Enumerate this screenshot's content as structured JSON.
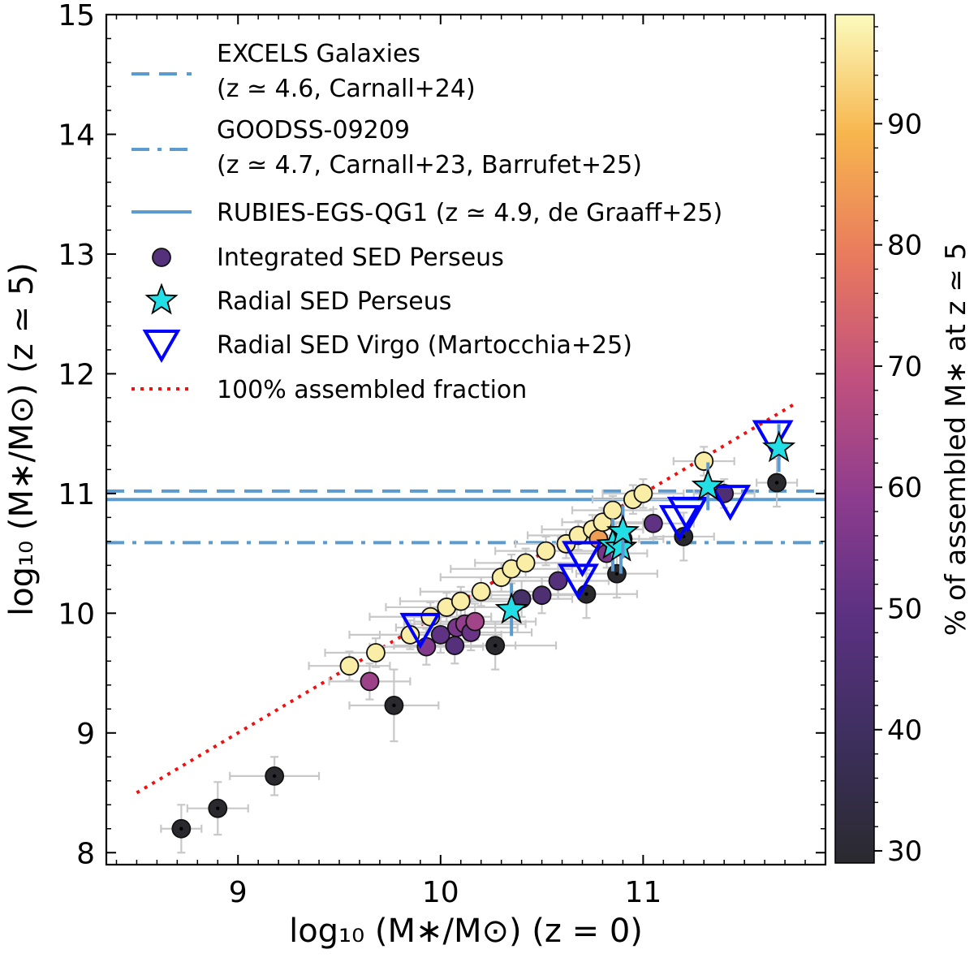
{
  "chart_data": {
    "type": "scatter",
    "xlabel": "log₁₀ (M∗/M⊙) (z = 0)",
    "ylabel": "log₁₀ (M∗/M⊙) (z ≃ 5)",
    "xlim": [
      8.35,
      11.9
    ],
    "ylim": [
      7.9,
      15.0
    ],
    "xticks": [
      9,
      10,
      11
    ],
    "yticks": [
      8,
      9,
      10,
      11,
      12,
      13,
      14,
      15
    ],
    "colorbar": {
      "label": "% of assembled M∗ at z ≃ 5",
      "range": [
        29,
        99
      ],
      "ticks": [
        30,
        40,
        50,
        60,
        70,
        80,
        90
      ]
    },
    "reference_lines": [
      {
        "name": "EXCELS Galaxies",
        "label_line1": "EXCELS Galaxies",
        "label_line2": "(z ≃ 4.6, Carnall+24)",
        "y": 11.02,
        "style": "dashed"
      },
      {
        "name": "GOODSS-09209",
        "label_line1": "GOODSS-09209",
        "label_line2": "(z ≃ 4.7, Carnall+23, Barrufet+25)",
        "y": 10.59,
        "style": "dashdot"
      },
      {
        "name": "RUBIES-EGS-QG1",
        "label_line1": "RUBIES-EGS-QG1 (z ≃ 4.9, de Graaff+25)",
        "label_line2": "",
        "y": 10.95,
        "style": "solid"
      }
    ],
    "one_to_one_line": {
      "name": "100% assembled fraction",
      "x": [
        8.5,
        11.75
      ],
      "y": [
        8.5,
        11.75
      ]
    },
    "series": [
      {
        "name": "Integrated SED Perseus",
        "marker": "circle",
        "points": [
          {
            "x": 8.72,
            "y": 8.2,
            "c": 29,
            "xerr": 0.1,
            "yerr": 0.2
          },
          {
            "x": 8.9,
            "y": 8.37,
            "c": 29,
            "xerr": 0.15,
            "yerr": 0.22
          },
          {
            "x": 9.18,
            "y": 8.64,
            "c": 29,
            "xerr": 0.22,
            "yerr": 0.16
          },
          {
            "x": 9.55,
            "y": 9.56,
            "c": 97,
            "xerr": 0.2,
            "yerr": 0.12
          },
          {
            "x": 9.65,
            "y": 9.43,
            "c": 62,
            "xerr": 0.2,
            "yerr": 0.15
          },
          {
            "x": 9.68,
            "y": 9.67,
            "c": 97,
            "xerr": 0.25,
            "yerr": 0.12
          },
          {
            "x": 9.77,
            "y": 9.23,
            "c": 29,
            "xerr": 0.22,
            "yerr": 0.3
          },
          {
            "x": 9.85,
            "y": 9.82,
            "c": 97,
            "xerr": 0.3,
            "yerr": 0.12
          },
          {
            "x": 9.93,
            "y": 9.72,
            "c": 57,
            "xerr": 0.28,
            "yerr": 0.15
          },
          {
            "x": 9.95,
            "y": 9.97,
            "c": 97,
            "xerr": 0.3,
            "yerr": 0.12
          },
          {
            "x": 10.0,
            "y": 9.82,
            "c": 50,
            "xerr": 0.3,
            "yerr": 0.15
          },
          {
            "x": 10.03,
            "y": 10.05,
            "c": 97,
            "xerr": 0.3,
            "yerr": 0.12
          },
          {
            "x": 10.07,
            "y": 9.73,
            "c": 47,
            "xerr": 0.3,
            "yerr": 0.15
          },
          {
            "x": 10.08,
            "y": 9.88,
            "c": 55,
            "xerr": 0.3,
            "yerr": 0.15
          },
          {
            "x": 10.1,
            "y": 10.1,
            "c": 97,
            "xerr": 0.3,
            "yerr": 0.12
          },
          {
            "x": 10.12,
            "y": 9.91,
            "c": 60,
            "xerr": 0.3,
            "yerr": 0.15
          },
          {
            "x": 10.15,
            "y": 9.84,
            "c": 52,
            "xerr": 0.3,
            "yerr": 0.15
          },
          {
            "x": 10.17,
            "y": 9.93,
            "c": 63,
            "xerr": 0.3,
            "yerr": 0.15
          },
          {
            "x": 10.2,
            "y": 10.18,
            "c": 97,
            "xerr": 0.3,
            "yerr": 0.12
          },
          {
            "x": 10.27,
            "y": 9.73,
            "c": 29,
            "xerr": 0.3,
            "yerr": 0.2
          },
          {
            "x": 10.3,
            "y": 10.3,
            "c": 97,
            "xerr": 0.3,
            "yerr": 0.12
          },
          {
            "x": 10.35,
            "y": 10.37,
            "c": 97,
            "xerr": 0.3,
            "yerr": 0.12
          },
          {
            "x": 10.4,
            "y": 10.12,
            "c": 42,
            "xerr": 0.25,
            "yerr": 0.15
          },
          {
            "x": 10.42,
            "y": 10.42,
            "c": 97,
            "xerr": 0.25,
            "yerr": 0.12
          },
          {
            "x": 10.5,
            "y": 10.15,
            "c": 45,
            "xerr": 0.25,
            "yerr": 0.15
          },
          {
            "x": 10.52,
            "y": 10.52,
            "c": 97,
            "xerr": 0.25,
            "yerr": 0.12
          },
          {
            "x": 10.58,
            "y": 10.27,
            "c": 47,
            "xerr": 0.25,
            "yerr": 0.15
          },
          {
            "x": 10.62,
            "y": 10.58,
            "c": 97,
            "xerr": 0.25,
            "yerr": 0.12
          },
          {
            "x": 10.68,
            "y": 10.65,
            "c": 97,
            "xerr": 0.25,
            "yerr": 0.12
          },
          {
            "x": 10.72,
            "y": 10.16,
            "c": 29,
            "xerr": 0.25,
            "yerr": 0.2
          },
          {
            "x": 10.75,
            "y": 10.7,
            "c": 97,
            "xerr": 0.25,
            "yerr": 0.12
          },
          {
            "x": 10.78,
            "y": 10.62,
            "c": 85,
            "xerr": 0.2,
            "yerr": 0.12
          },
          {
            "x": 10.8,
            "y": 10.76,
            "c": 97,
            "xerr": 0.2,
            "yerr": 0.12
          },
          {
            "x": 10.82,
            "y": 10.5,
            "c": 55,
            "xerr": 0.2,
            "yerr": 0.12
          },
          {
            "x": 10.85,
            "y": 10.86,
            "c": 97,
            "xerr": 0.2,
            "yerr": 0.12
          },
          {
            "x": 10.87,
            "y": 10.33,
            "c": 29,
            "xerr": 0.2,
            "yerr": 0.2
          },
          {
            "x": 10.9,
            "y": 10.62,
            "c": 45,
            "xerr": 0.2,
            "yerr": 0.12
          },
          {
            "x": 10.95,
            "y": 10.95,
            "c": 97,
            "xerr": 0.2,
            "yerr": 0.12
          },
          {
            "x": 11.0,
            "y": 11.0,
            "c": 97,
            "xerr": 0.2,
            "yerr": 0.12
          },
          {
            "x": 11.05,
            "y": 10.75,
            "c": 50,
            "xerr": 0.2,
            "yerr": 0.12
          },
          {
            "x": 11.2,
            "y": 10.64,
            "c": 29,
            "xerr": 0.15,
            "yerr": 0.2
          },
          {
            "x": 11.3,
            "y": 11.27,
            "c": 97,
            "xerr": 0.15,
            "yerr": 0.12
          },
          {
            "x": 11.4,
            "y": 11.0,
            "c": 45,
            "xerr": 0.15,
            "yerr": 0.12
          },
          {
            "x": 11.66,
            "y": 11.09,
            "c": 29,
            "xerr": 0.1,
            "yerr": 0.2
          }
        ]
      },
      {
        "name": "Radial SED Perseus",
        "marker": "star",
        "color": "#22dfe6",
        "points": [
          {
            "x": 10.35,
            "y": 10.03,
            "yerr": 0.22
          },
          {
            "x": 10.85,
            "y": 10.57,
            "yerr": 0.22
          },
          {
            "x": 10.89,
            "y": 10.55,
            "yerr": 0.22
          },
          {
            "x": 10.9,
            "y": 10.68,
            "yerr": 0.22
          },
          {
            "x": 11.32,
            "y": 11.06,
            "yerr": 0.2
          },
          {
            "x": 11.67,
            "y": 11.38,
            "yerr": 0.2
          }
        ]
      },
      {
        "name": "Radial SED Virgo (Martocchia+25)",
        "marker": "triangle-down",
        "color": "#0000ff",
        "points": [
          {
            "x": 9.9,
            "y": 9.87
          },
          {
            "x": 10.68,
            "y": 10.28
          },
          {
            "x": 10.7,
            "y": 10.47
          },
          {
            "x": 11.18,
            "y": 10.77
          },
          {
            "x": 11.22,
            "y": 10.84
          },
          {
            "x": 11.43,
            "y": 10.94
          },
          {
            "x": 11.64,
            "y": 11.48
          }
        ]
      }
    ],
    "legend_position": "top-left"
  }
}
